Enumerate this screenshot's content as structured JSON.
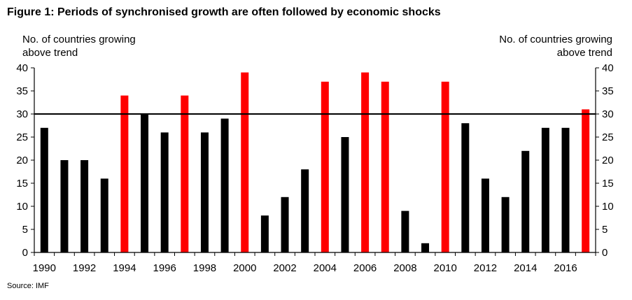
{
  "title": "Figure 1: Periods of synchronised growth are often followed by economic shocks",
  "y_label_left": [
    "No. of countries growing",
    "above trend"
  ],
  "y_label_right": [
    "No. of countries growing",
    "above trend"
  ],
  "source": "Source: IMF",
  "colors": {
    "normal": "#000000",
    "highlight": "#ff0000",
    "reference": "#000000"
  },
  "chart_data": {
    "type": "bar",
    "title": "Figure 1: Periods of synchronised growth are often followed by economic shocks",
    "ylabel": "No. of countries growing above trend",
    "xlabel": "",
    "ylim": [
      0,
      40
    ],
    "yticks": [
      0,
      5,
      10,
      15,
      20,
      25,
      30,
      35,
      40
    ],
    "x_tick_labels": [
      "1990",
      "1992",
      "1994",
      "1996",
      "1998",
      "2000",
      "2002",
      "2004",
      "2006",
      "2008",
      "2010",
      "2012",
      "2014",
      "2016"
    ],
    "reference_line": 30,
    "categories": [
      "1990",
      "1991",
      "1992",
      "1993",
      "1994",
      "1995",
      "1996",
      "1997",
      "1998",
      "1999",
      "2000",
      "2001",
      "2002",
      "2003",
      "2004",
      "2005",
      "2006",
      "2007",
      "2008",
      "2009",
      "2010",
      "2011",
      "2012",
      "2013",
      "2014",
      "2015",
      "2016",
      "2017"
    ],
    "values": [
      27,
      20,
      20,
      16,
      34,
      30,
      26,
      34,
      26,
      29,
      39,
      8,
      12,
      18,
      37,
      25,
      39,
      37,
      9,
      2,
      37,
      28,
      16,
      12,
      22,
      27,
      27,
      31
    ],
    "highlighted": [
      false,
      false,
      false,
      false,
      true,
      false,
      false,
      true,
      false,
      false,
      true,
      false,
      false,
      false,
      true,
      false,
      true,
      true,
      false,
      false,
      true,
      false,
      false,
      false,
      false,
      false,
      false,
      true
    ]
  }
}
